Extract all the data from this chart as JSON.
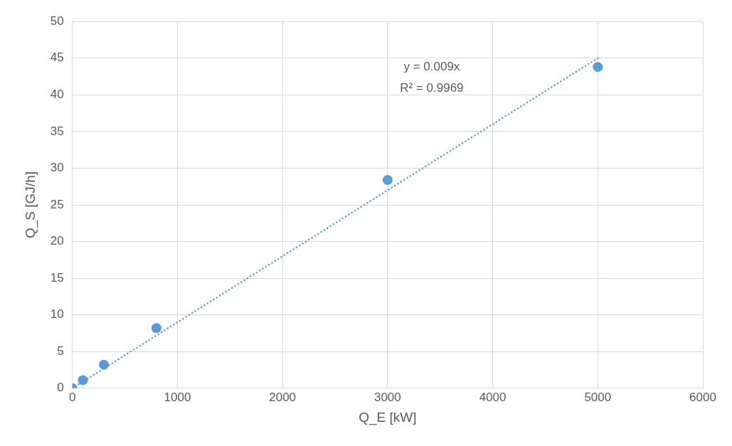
{
  "chart_data": {
    "type": "scatter",
    "xlabel": "Q_E [kW]",
    "ylabel": "Q_S [GJ/h]",
    "xlim": [
      0,
      6000
    ],
    "xticks": [
      0,
      1000,
      2000,
      3000,
      4000,
      5000,
      6000
    ],
    "ylim": [
      0,
      50
    ],
    "yticks": [
      0,
      5,
      10,
      15,
      20,
      25,
      30,
      35,
      40,
      45,
      50
    ],
    "grid": true,
    "legend": false,
    "marker": "circle",
    "series": [
      {
        "type": "scatter",
        "color": "#5b9bd5",
        "x": [
          0,
          100,
          300,
          800,
          3000,
          5000
        ],
        "values": [
          0,
          1.1,
          3.2,
          8.2,
          28.4,
          43.8
        ]
      },
      {
        "type": "line",
        "color": "#5b9bd5",
        "line_style": "dotted",
        "marker": "none",
        "x": [
          0,
          5000
        ],
        "values": [
          0,
          45
        ]
      }
    ],
    "annotations": [
      "y = 0.009x",
      "R² = 0.9969"
    ]
  }
}
